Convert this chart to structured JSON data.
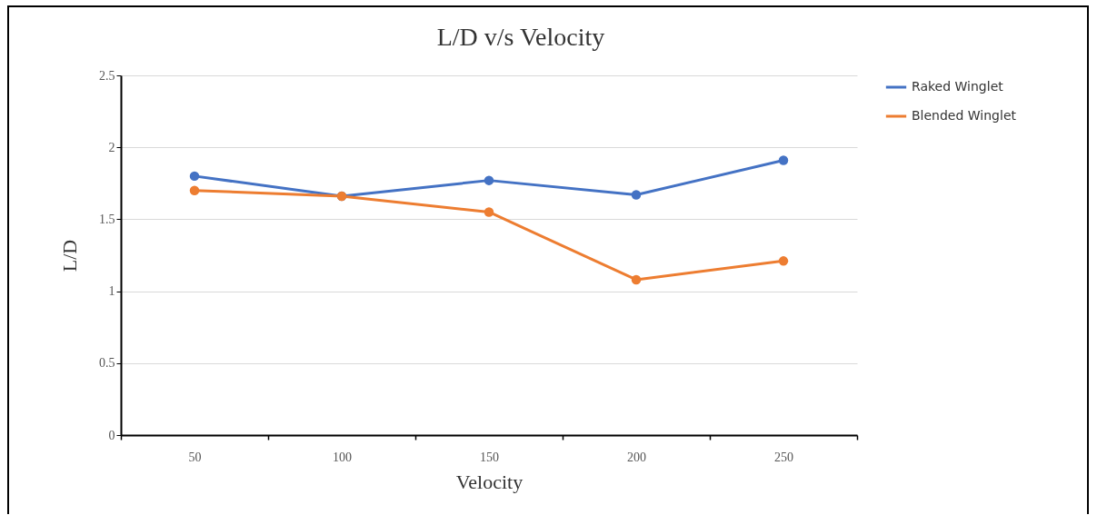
{
  "chart_data": {
    "type": "line",
    "title": "L/D v/s Velocity",
    "xlabel": "Velocity",
    "ylabel": "L/D",
    "categories": [
      "50",
      "100",
      "150",
      "200",
      "250"
    ],
    "series": [
      {
        "name": "Raked Winglet",
        "color": "#4472c4",
        "values": [
          1.8,
          1.66,
          1.77,
          1.67,
          1.91
        ]
      },
      {
        "name": "Blended Winglet",
        "color": "#ed7d31",
        "values": [
          1.7,
          1.66,
          1.55,
          1.08,
          1.21
        ]
      }
    ],
    "ylim": [
      0,
      2.5
    ],
    "yticks": [
      {
        "value": 0,
        "label": "0"
      },
      0.5,
      {
        "value": 1,
        "label": "1"
      },
      1.5,
      {
        "value": 2,
        "label": "2"
      },
      2.5
    ],
    "grid": "y",
    "legend": "right",
    "marker": "circle",
    "line_style": "solid"
  }
}
